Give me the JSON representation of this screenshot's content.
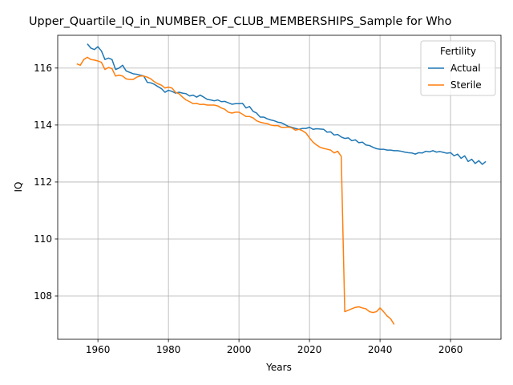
{
  "chart_data": {
    "type": "line",
    "title": "Upper_Quartile_IQ_in_NUMBER_OF_CLUB_MEMBERSHIPS_Sample for Who",
    "xlabel": "Years",
    "ylabel": "IQ",
    "xlim": [
      1948.6,
      2074.3
    ],
    "ylim": [
      106.48,
      117.15
    ],
    "xticks": [
      1960,
      1980,
      2000,
      2020,
      2040,
      2060
    ],
    "yticks": [
      108,
      110,
      112,
      114,
      116
    ],
    "grid": true,
    "legend_title": "Fertility",
    "legend_loc": "upper right",
    "series": [
      {
        "name": "Actual",
        "color": "#1f77b4",
        "x": [
          1957,
          1958,
          1959,
          1960,
          1961,
          1962,
          1963,
          1964,
          1965,
          1966,
          1967,
          1968,
          1969,
          1970,
          1971,
          1972,
          1973,
          1974,
          1975,
          1976,
          1977,
          1978,
          1979,
          1980,
          1981,
          1982,
          1983,
          1984,
          1985,
          1986,
          1987,
          1988,
          1989,
          1990,
          1991,
          1992,
          1993,
          1994,
          1995,
          1996,
          1997,
          1998,
          1999,
          2000,
          2001,
          2002,
          2003,
          2004,
          2005,
          2006,
          2007,
          2008,
          2009,
          2010,
          2011,
          2012,
          2013,
          2014,
          2015,
          2016,
          2017,
          2018,
          2019,
          2020,
          2021,
          2022,
          2023,
          2024,
          2025,
          2026,
          2027,
          2028,
          2029,
          2030,
          2031,
          2032,
          2033,
          2034,
          2035,
          2036,
          2037,
          2038,
          2039,
          2040,
          2041,
          2042,
          2043,
          2044,
          2045,
          2046,
          2047,
          2048,
          2049,
          2050,
          2051,
          2052,
          2053,
          2054,
          2055,
          2056,
          2057,
          2058,
          2059,
          2060,
          2061,
          2062,
          2063,
          2064,
          2065,
          2066,
          2067,
          2068,
          2069,
          2070
        ],
        "values": [
          116.85,
          116.7,
          116.65,
          116.75,
          116.6,
          116.3,
          116.35,
          116.3,
          115.95,
          116.0,
          116.1,
          115.9,
          115.85,
          115.8,
          115.78,
          115.75,
          115.72,
          115.5,
          115.48,
          115.43,
          115.35,
          115.28,
          115.15,
          115.22,
          115.18,
          115.12,
          115.15,
          115.12,
          115.1,
          115.02,
          115.05,
          114.98,
          115.05,
          114.98,
          114.9,
          114.88,
          114.85,
          114.88,
          114.82,
          114.83,
          114.78,
          114.73,
          114.75,
          114.75,
          114.76,
          114.6,
          114.65,
          114.48,
          114.42,
          114.28,
          114.28,
          114.22,
          114.18,
          114.15,
          114.1,
          114.08,
          114.02,
          113.95,
          113.92,
          113.88,
          113.85,
          113.88,
          113.88,
          113.92,
          113.85,
          113.87,
          113.86,
          113.85,
          113.75,
          113.76,
          113.65,
          113.67,
          113.58,
          113.53,
          113.55,
          113.45,
          113.48,
          113.38,
          113.4,
          113.3,
          113.28,
          113.22,
          113.17,
          113.15,
          113.15,
          113.12,
          113.12,
          113.1,
          113.1,
          113.08,
          113.05,
          113.03,
          113.02,
          112.98,
          113.03,
          113.02,
          113.08,
          113.06,
          113.1,
          113.05,
          113.07,
          113.04,
          113.01,
          113.03,
          112.92,
          112.98,
          112.83,
          112.92,
          112.72,
          112.8,
          112.65,
          112.75,
          112.62,
          112.72
        ]
      },
      {
        "name": "Sterile",
        "color": "#ff7f0e",
        "x": [
          1954,
          1955,
          1956,
          1957,
          1958,
          1959,
          1960,
          1961,
          1962,
          1963,
          1964,
          1965,
          1966,
          1967,
          1968,
          1969,
          1970,
          1971,
          1972,
          1973,
          1974,
          1975,
          1976,
          1977,
          1978,
          1979,
          1980,
          1981,
          1982,
          1983,
          1984,
          1985,
          1986,
          1987,
          1988,
          1989,
          1990,
          1991,
          1992,
          1993,
          1994,
          1995,
          1996,
          1997,
          1998,
          1999,
          2000,
          2001,
          2002,
          2003,
          2004,
          2005,
          2006,
          2007,
          2008,
          2009,
          2010,
          2011,
          2012,
          2013,
          2014,
          2015,
          2016,
          2017,
          2018,
          2019,
          2020,
          2021,
          2022,
          2023,
          2024,
          2025,
          2026,
          2027,
          2028,
          2029,
          2030,
          2031,
          2032,
          2033,
          2034,
          2035,
          2036,
          2037,
          2038,
          2039,
          2040,
          2041,
          2042,
          2043,
          2044
        ],
        "values": [
          116.15,
          116.1,
          116.3,
          116.38,
          116.3,
          116.28,
          116.25,
          116.2,
          115.95,
          116.02,
          115.98,
          115.72,
          115.75,
          115.72,
          115.62,
          115.6,
          115.6,
          115.68,
          115.72,
          115.72,
          115.68,
          115.62,
          115.52,
          115.45,
          115.4,
          115.3,
          115.33,
          115.3,
          115.15,
          115.1,
          114.98,
          114.88,
          114.82,
          114.75,
          114.76,
          114.72,
          114.73,
          114.7,
          114.7,
          114.7,
          114.67,
          114.6,
          114.55,
          114.45,
          114.42,
          114.45,
          114.45,
          114.38,
          114.3,
          114.3,
          114.25,
          114.15,
          114.1,
          114.07,
          114.05,
          114.0,
          113.98,
          113.98,
          113.92,
          113.92,
          113.93,
          113.9,
          113.82,
          113.85,
          113.8,
          113.72,
          113.55,
          113.4,
          113.3,
          113.22,
          113.18,
          113.15,
          113.12,
          113.02,
          113.08,
          112.9,
          107.45,
          107.5,
          107.55,
          107.6,
          107.62,
          107.58,
          107.55,
          107.45,
          107.42,
          107.45,
          107.58,
          107.45,
          107.3,
          107.2,
          107.0
        ]
      }
    ]
  }
}
